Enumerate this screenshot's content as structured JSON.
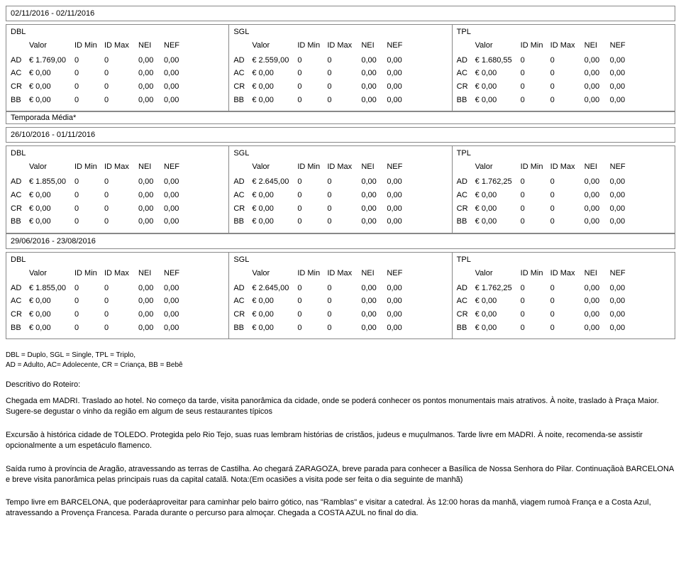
{
  "headers": {
    "dbl": "DBL",
    "sgl": "SGL",
    "tpl": "TPL",
    "valor": "Valor",
    "idmin": "ID Min",
    "idmax": "ID Max",
    "nei": "NEI",
    "nef": "NEF"
  },
  "row_codes": [
    "AD",
    "AC",
    "CR",
    "BB"
  ],
  "block1": {
    "date_range": "02/11/2016 - 02/11/2016",
    "dbl": [
      {
        "valor": "€ 1.769,00",
        "idmin": "0",
        "idmax": "0",
        "nei": "0,00",
        "nef": "0,00"
      },
      {
        "valor": "€ 0,00",
        "idmin": "0",
        "idmax": "0",
        "nei": "0,00",
        "nef": "0,00"
      },
      {
        "valor": "€ 0,00",
        "idmin": "0",
        "idmax": "0",
        "nei": "0,00",
        "nef": "0,00"
      },
      {
        "valor": "€ 0,00",
        "idmin": "0",
        "idmax": "0",
        "nei": "0,00",
        "nef": "0,00"
      }
    ],
    "sgl": [
      {
        "valor": "€ 2.559,00",
        "idmin": "0",
        "idmax": "0",
        "nei": "0,00",
        "nef": "0,00"
      },
      {
        "valor": "€ 0,00",
        "idmin": "0",
        "idmax": "0",
        "nei": "0,00",
        "nef": "0,00"
      },
      {
        "valor": "€ 0,00",
        "idmin": "0",
        "idmax": "0",
        "nei": "0,00",
        "nef": "0,00"
      },
      {
        "valor": "€ 0,00",
        "idmin": "0",
        "idmax": "0",
        "nei": "0,00",
        "nef": "0,00"
      }
    ],
    "tpl": [
      {
        "valor": "€ 1.680,55",
        "idmin": "0",
        "idmax": "0",
        "nei": "0,00",
        "nef": "0,00"
      },
      {
        "valor": "€ 0,00",
        "idmin": "0",
        "idmax": "0",
        "nei": "0,00",
        "nef": "0,00"
      },
      {
        "valor": "€ 0,00",
        "idmin": "0",
        "idmax": "0",
        "nei": "0,00",
        "nef": "0,00"
      },
      {
        "valor": "€ 0,00",
        "idmin": "0",
        "idmax": "0",
        "nei": "0,00",
        "nef": "0,00"
      }
    ]
  },
  "season_label": "Temporada Média*",
  "block2": {
    "date_range": "26/10/2016 - 01/11/2016",
    "dbl": [
      {
        "valor": "€ 1.855,00",
        "idmin": "0",
        "idmax": "0",
        "nei": "0,00",
        "nef": "0,00"
      },
      {
        "valor": "€ 0,00",
        "idmin": "0",
        "idmax": "0",
        "nei": "0,00",
        "nef": "0,00"
      },
      {
        "valor": "€ 0,00",
        "idmin": "0",
        "idmax": "0",
        "nei": "0,00",
        "nef": "0,00"
      },
      {
        "valor": "€ 0,00",
        "idmin": "0",
        "idmax": "0",
        "nei": "0,00",
        "nef": "0,00"
      }
    ],
    "sgl": [
      {
        "valor": "€ 2.645,00",
        "idmin": "0",
        "idmax": "0",
        "nei": "0,00",
        "nef": "0,00"
      },
      {
        "valor": "€ 0,00",
        "idmin": "0",
        "idmax": "0",
        "nei": "0,00",
        "nef": "0,00"
      },
      {
        "valor": "€ 0,00",
        "idmin": "0",
        "idmax": "0",
        "nei": "0,00",
        "nef": "0,00"
      },
      {
        "valor": "€ 0,00",
        "idmin": "0",
        "idmax": "0",
        "nei": "0,00",
        "nef": "0,00"
      }
    ],
    "tpl": [
      {
        "valor": "€ 1.762,25",
        "idmin": "0",
        "idmax": "0",
        "nei": "0,00",
        "nef": "0,00"
      },
      {
        "valor": "€ 0,00",
        "idmin": "0",
        "idmax": "0",
        "nei": "0,00",
        "nef": "0,00"
      },
      {
        "valor": "€ 0,00",
        "idmin": "0",
        "idmax": "0",
        "nei": "0,00",
        "nef": "0,00"
      },
      {
        "valor": "€ 0,00",
        "idmin": "0",
        "idmax": "0",
        "nei": "0,00",
        "nef": "0,00"
      }
    ]
  },
  "block3": {
    "date_range": "29/06/2016 - 23/08/2016",
    "dbl": [
      {
        "valor": "€ 1.855,00",
        "idmin": "0",
        "idmax": "0",
        "nei": "0,00",
        "nef": "0,00"
      },
      {
        "valor": "€ 0,00",
        "idmin": "0",
        "idmax": "0",
        "nei": "0,00",
        "nef": "0,00"
      },
      {
        "valor": "€ 0,00",
        "idmin": "0",
        "idmax": "0",
        "nei": "0,00",
        "nef": "0,00"
      },
      {
        "valor": "€ 0,00",
        "idmin": "0",
        "idmax": "0",
        "nei": "0,00",
        "nef": "0,00"
      }
    ],
    "sgl": [
      {
        "valor": "€ 2.645,00",
        "idmin": "0",
        "idmax": "0",
        "nei": "0,00",
        "nef": "0,00"
      },
      {
        "valor": "€ 0,00",
        "idmin": "0",
        "idmax": "0",
        "nei": "0,00",
        "nef": "0,00"
      },
      {
        "valor": "€ 0,00",
        "idmin": "0",
        "idmax": "0",
        "nei": "0,00",
        "nef": "0,00"
      },
      {
        "valor": "€ 0,00",
        "idmin": "0",
        "idmax": "0",
        "nei": "0,00",
        "nef": "0,00"
      }
    ],
    "tpl": [
      {
        "valor": "€ 1.762,25",
        "idmin": "0",
        "idmax": "0",
        "nei": "0,00",
        "nef": "0,00"
      },
      {
        "valor": "€ 0,00",
        "idmin": "0",
        "idmax": "0",
        "nei": "0,00",
        "nef": "0,00"
      },
      {
        "valor": "€ 0,00",
        "idmin": "0",
        "idmax": "0",
        "nei": "0,00",
        "nef": "0,00"
      },
      {
        "valor": "€ 0,00",
        "idmin": "0",
        "idmax": "0",
        "nei": "0,00",
        "nef": "0,00"
      }
    ]
  },
  "footnote1": "DBL = Duplo, SGL = Single, TPL = Triplo,",
  "footnote2": "AD = Adulto, AC= Adolecente, CR = Criança, BB = Bebê",
  "desc_title": "Descritivo do Roteiro:",
  "para1": "Chegada em MADRI. Traslado ao hotel. No começo da tarde, visita panorâmica da cidade, onde se poderá conhecer os pontos monumentais mais atrativos. À noite, traslado à Praça Maior. Sugere-se degustar o vinho da região em algum de seus restaurantes típicos",
  "para2": "Excursão à histórica cidade de TOLEDO. Protegida pelo Rio Tejo, suas ruas lembram histórias de cristãos, judeus e muçulmanos. Tarde livre em MADRI. À noite, recomenda-se assistir opcionalmente a um espetáculo flamenco.",
  "para3": "Saída rumo à província de Aragão, atravessando as terras de Castilha. Ao chegará ZARAGOZA, breve parada para conhecer a Basílica de Nossa Senhora do Pilar. Continuaçãoà BARCELONA e breve visita panorâmica pelas principais ruas da capital catalã. Nota:(Em ocasiões a visita pode ser feita o dia seguinte de manhã)",
  "para4": "Tempo livre em BARCELONA, que poderáaproveitar para caminhar pelo bairro gótico, nas \"Ramblas\" e visitar a catedral. Às 12:00 horas da manhã, viagem rumoà França e a Costa Azul, atravessando a Provença Francesa. Parada durante o percurso para almoçar. Chegada a COSTA AZUL no final do dia."
}
